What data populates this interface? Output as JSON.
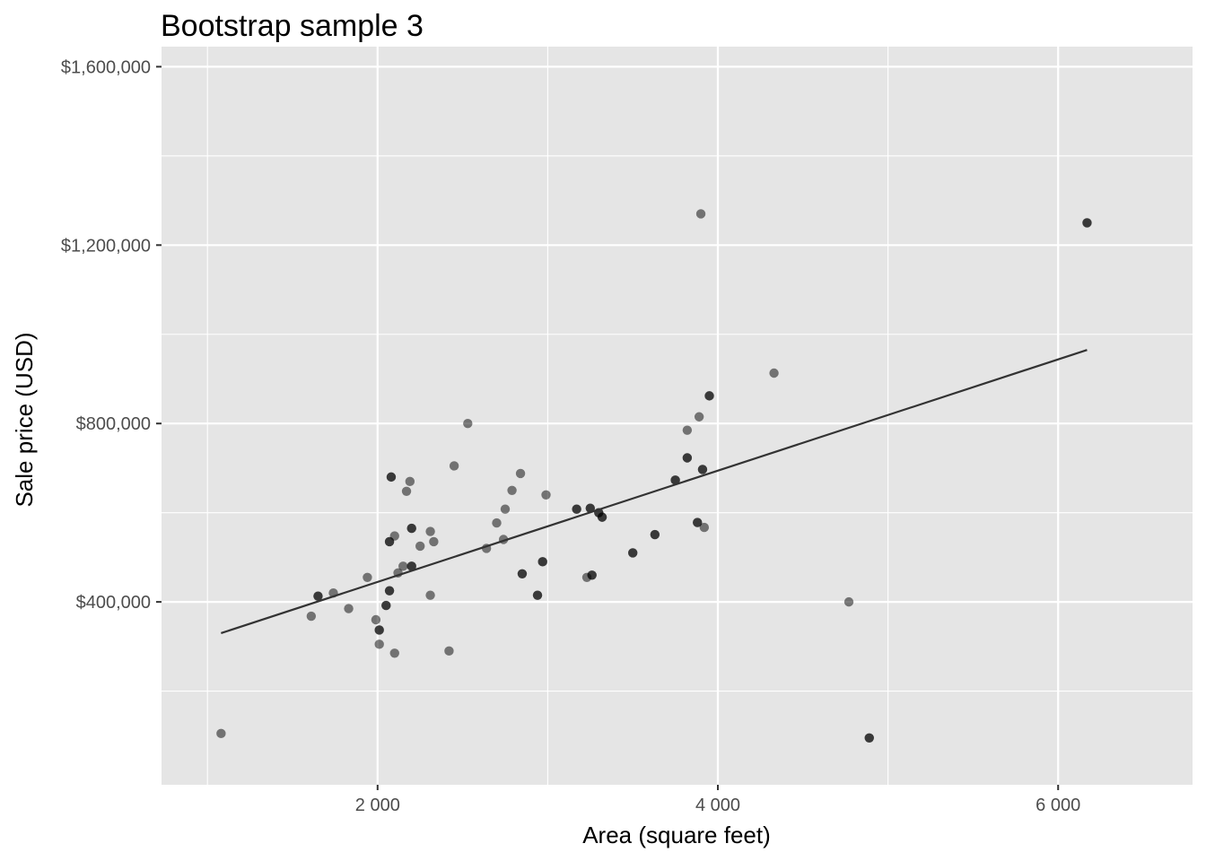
{
  "chart_data": {
    "type": "scatter",
    "title": "Bootstrap sample 3",
    "xlabel": "Area (square feet)",
    "ylabel": "Sale price (USD)",
    "xlim": [
      730,
      6790
    ],
    "ylim": [
      -10000,
      1645000
    ],
    "x_ticks": [
      2000,
      4000,
      6000
    ],
    "x_tick_labels": [
      "2 000",
      "4 000",
      "6 000"
    ],
    "x_minor_ticks": [
      1000,
      3000,
      5000
    ],
    "y_ticks": [
      400000,
      800000,
      1200000,
      1600000
    ],
    "y_tick_labels": [
      "$400,000",
      "$800,000",
      "$1,200,000",
      "$1,600,000"
    ],
    "y_minor_ticks": [
      200000,
      600000,
      1000000,
      1400000
    ],
    "grid": true,
    "background": "#e5e5e5",
    "point_color": "#000000",
    "point_opacity": 0.5,
    "line_color": "#333333",
    "points": [
      [
        1080,
        105000
      ],
      [
        1610,
        368000
      ],
      [
        1650,
        413000
      ],
      [
        1650,
        413000
      ],
      [
        1740,
        420000
      ],
      [
        1830,
        385000
      ],
      [
        1940,
        455000
      ],
      [
        1990,
        360000
      ],
      [
        2010,
        305000
      ],
      [
        2010,
        337000
      ],
      [
        2010,
        337000
      ],
      [
        2050,
        392000
      ],
      [
        2050,
        392000
      ],
      [
        2070,
        535000
      ],
      [
        2070,
        535000
      ],
      [
        2070,
        425000
      ],
      [
        2070,
        425000
      ],
      [
        2080,
        680000
      ],
      [
        2080,
        680000
      ],
      [
        2100,
        285000
      ],
      [
        2100,
        548000
      ],
      [
        2120,
        465000
      ],
      [
        2150,
        480000
      ],
      [
        2170,
        648000
      ],
      [
        2190,
        670000
      ],
      [
        2200,
        480000
      ],
      [
        2200,
        480000
      ],
      [
        2200,
        565000
      ],
      [
        2200,
        565000
      ],
      [
        2250,
        525000
      ],
      [
        2310,
        415000
      ],
      [
        2310,
        558000
      ],
      [
        2330,
        535000
      ],
      [
        2420,
        290000
      ],
      [
        2450,
        705000
      ],
      [
        2530,
        800000
      ],
      [
        2640,
        520000
      ],
      [
        2700,
        577000
      ],
      [
        2740,
        540000
      ],
      [
        2750,
        608000
      ],
      [
        2790,
        650000
      ],
      [
        2840,
        688000
      ],
      [
        2850,
        463000
      ],
      [
        2850,
        463000
      ],
      [
        2940,
        415000
      ],
      [
        2940,
        415000
      ],
      [
        2970,
        490000
      ],
      [
        2970,
        490000
      ],
      [
        2990,
        640000
      ],
      [
        3170,
        608000
      ],
      [
        3170,
        608000
      ],
      [
        3230,
        455000
      ],
      [
        3250,
        610000
      ],
      [
        3250,
        610000
      ],
      [
        3260,
        460000
      ],
      [
        3260,
        460000
      ],
      [
        3300,
        600000
      ],
      [
        3300,
        600000
      ],
      [
        3320,
        590000
      ],
      [
        3320,
        590000
      ],
      [
        3500,
        510000
      ],
      [
        3500,
        510000
      ],
      [
        3630,
        551000
      ],
      [
        3630,
        551000
      ],
      [
        3750,
        673000
      ],
      [
        3750,
        673000
      ],
      [
        3820,
        785000
      ],
      [
        3820,
        723000
      ],
      [
        3820,
        723000
      ],
      [
        3880,
        578000
      ],
      [
        3880,
        578000
      ],
      [
        3890,
        815000
      ],
      [
        3900,
        1270000
      ],
      [
        3910,
        697000
      ],
      [
        3910,
        697000
      ],
      [
        3920,
        567000
      ],
      [
        3950,
        862000
      ],
      [
        3950,
        862000
      ],
      [
        4330,
        913000
      ],
      [
        4770,
        400000
      ],
      [
        4890,
        95000
      ],
      [
        4890,
        95000
      ],
      [
        6170,
        1250000
      ],
      [
        6170,
        1250000
      ]
    ],
    "regression_line": {
      "x": [
        1080,
        6170
      ],
      "y": [
        330000,
        965000
      ]
    }
  }
}
